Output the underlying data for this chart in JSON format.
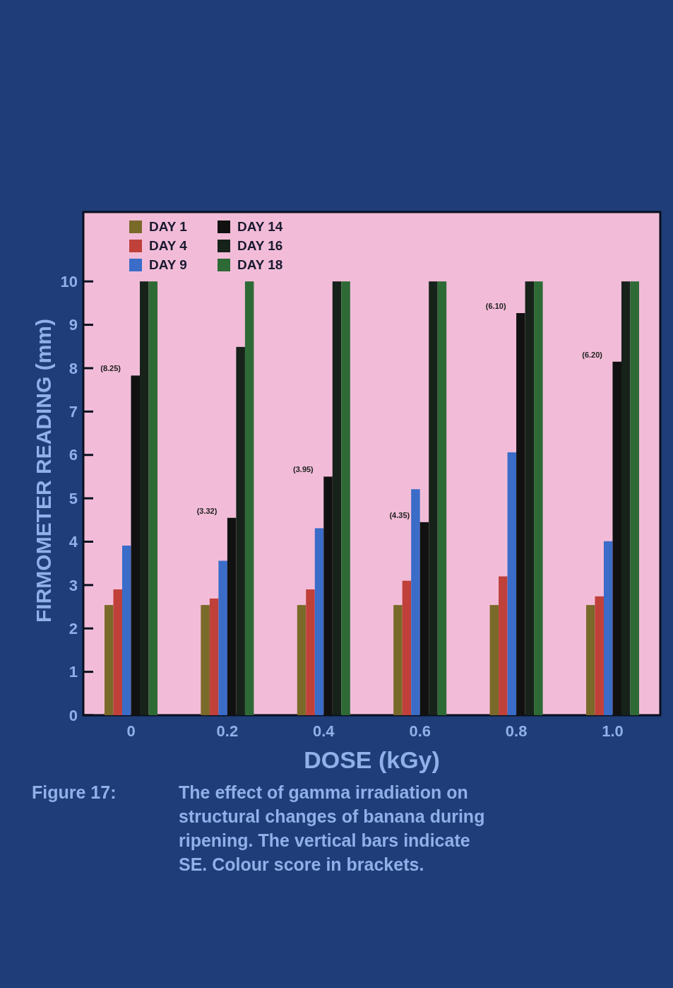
{
  "chart_data": {
    "type": "bar",
    "xlabel": "DOSE (kGy)",
    "ylabel": "FIRMOMETER READING (mm)",
    "categories": [
      "0",
      "0.2",
      "0.4",
      "0.6",
      "0.8",
      "1.0"
    ],
    "series": [
      {
        "name": "DAY 1",
        "color": "#7a6a2a",
        "values": [
          2.54,
          2.54,
          2.54,
          2.54,
          2.54,
          2.54
        ]
      },
      {
        "name": "DAY 4",
        "color": "#c0403a",
        "values": [
          2.9,
          2.69,
          2.9,
          3.1,
          3.2,
          2.74
        ]
      },
      {
        "name": "DAY 9",
        "color": "#3a6cc8",
        "values": [
          3.91,
          3.56,
          4.31,
          5.21,
          6.06,
          4.01
        ]
      },
      {
        "name": "DAY 14",
        "color": "#111111",
        "values": [
          7.83,
          4.55,
          5.5,
          4.45,
          9.27,
          8.15
        ]
      },
      {
        "name": "DAY 16",
        "color": "#16221a",
        "values": [
          10,
          8.49,
          10,
          10,
          10,
          10
        ]
      },
      {
        "name": "DAY 18",
        "color": "#2e6a36",
        "values": [
          10,
          10,
          10,
          10,
          10,
          10
        ]
      }
    ],
    "ylim": [
      0,
      11.6
    ],
    "yticks": [
      0,
      1,
      2,
      3,
      4,
      5,
      6,
      7,
      8,
      9,
      10
    ],
    "grid": false,
    "legend": "top left",
    "annotations": [
      {
        "text": "(8.25)",
        "x": "0",
        "y": 7.83
      },
      {
        "text": "(3.32)",
        "x": "0.2",
        "y": 4.55
      },
      {
        "text": "(3.95)",
        "x": "0.4",
        "y": 5.5
      },
      {
        "text": "(4.35)",
        "x": "0.6",
        "y": 4.45
      },
      {
        "text": "(6.10)",
        "x": "0.8",
        "y": 9.27
      },
      {
        "text": "(6.20)",
        "x": "1.0",
        "y": 8.15
      },
      "Figure 17:",
      "The effect of gamma irradiation on structural changes of banana during ripening.  The vertical bars indicate SE. Colour score in brackets."
    ]
  }
}
